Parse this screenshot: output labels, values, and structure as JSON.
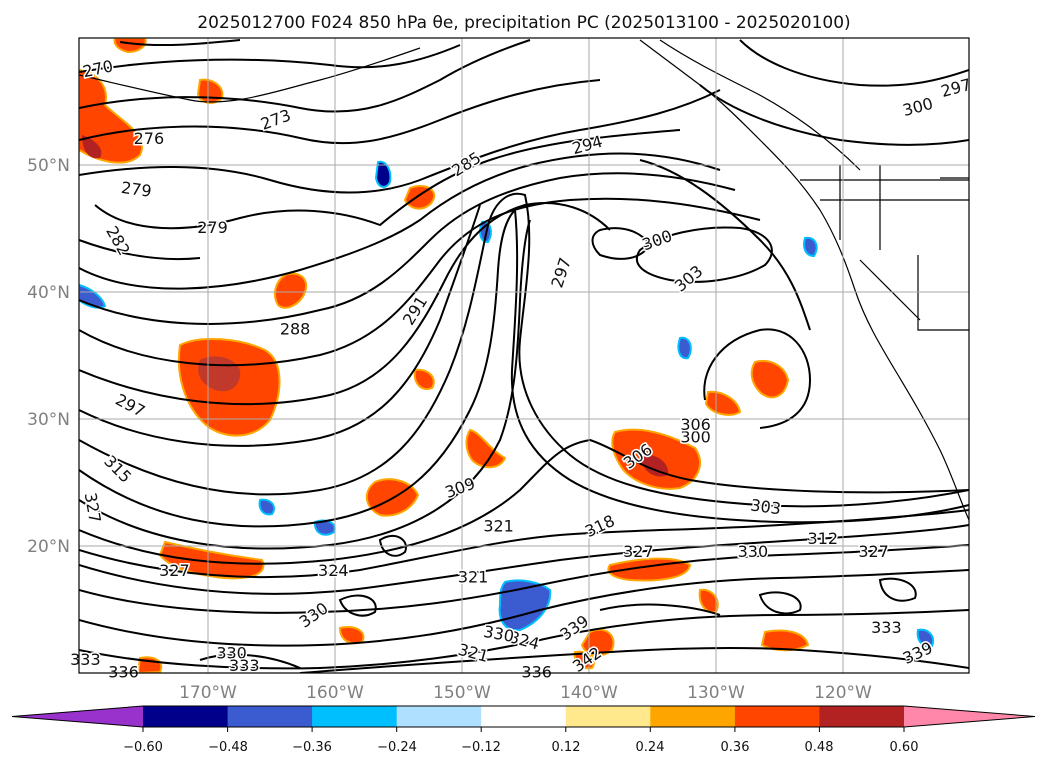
{
  "title": "2025012700 F024 850 hPa θe, precipitation PC (2025013100 - 2025020100)",
  "map": {
    "lat_labels": [
      "50°N",
      "40°N",
      "30°N",
      "20°N"
    ],
    "lon_labels": [
      "170°W",
      "160°W",
      "150°W",
      "140°W",
      "130°W",
      "120°W"
    ],
    "contour_labels": [
      {
        "text": "270",
        "lon": -178.5,
        "lat": 57.5,
        "rot": -12
      },
      {
        "text": "273",
        "lon": -164.5,
        "lat": 53.5,
        "rot": -20
      },
      {
        "text": "276",
        "lon": -174.5,
        "lat": 52.0,
        "rot": 0
      },
      {
        "text": "279",
        "lon": -175.5,
        "lat": 48.0,
        "rot": 8
      },
      {
        "text": "279",
        "lon": -169.5,
        "lat": 45.0,
        "rot": 0
      },
      {
        "text": "282",
        "lon": -177.0,
        "lat": 44.0,
        "rot": 60
      },
      {
        "text": "285",
        "lon": -149.5,
        "lat": 50.0,
        "rot": -32
      },
      {
        "text": "288",
        "lon": -163.0,
        "lat": 37.0,
        "rot": 0
      },
      {
        "text": "291",
        "lon": -153.5,
        "lat": 38.5,
        "rot": -58
      },
      {
        "text": "294",
        "lon": -140.0,
        "lat": 51.5,
        "rot": -15
      },
      {
        "text": "297",
        "lon": -176.0,
        "lat": 31.0,
        "rot": 28
      },
      {
        "text": "297",
        "lon": -142.0,
        "lat": 41.5,
        "rot": -72
      },
      {
        "text": "297",
        "lon": -111.0,
        "lat": 56.0,
        "rot": -15
      },
      {
        "text": "300",
        "lon": -134.5,
        "lat": 44.0,
        "rot": -20
      },
      {
        "text": "300",
        "lon": -131.5,
        "lat": 28.5,
        "rot": 0
      },
      {
        "text": "300",
        "lon": -114.0,
        "lat": 54.5,
        "rot": -15
      },
      {
        "text": "303",
        "lon": -132.0,
        "lat": 41.0,
        "rot": -40
      },
      {
        "text": "303",
        "lon": -126.0,
        "lat": 23.0,
        "rot": 8
      },
      {
        "text": "306",
        "lon": -131.5,
        "lat": 29.5,
        "rot": 0
      },
      {
        "text": "306",
        "lon": -136.0,
        "lat": 27.0,
        "rot": -35
      },
      {
        "text": "309",
        "lon": -150.0,
        "lat": 24.5,
        "rot": -20
      },
      {
        "text": "312",
        "lon": -121.5,
        "lat": 20.5,
        "rot": 0
      },
      {
        "text": "315",
        "lon": -177.0,
        "lat": 26.0,
        "rot": 45
      },
      {
        "text": "318",
        "lon": -139.0,
        "lat": 21.5,
        "rot": -25
      },
      {
        "text": "321",
        "lon": -147.0,
        "lat": 21.5,
        "rot": 0
      },
      {
        "text": "321",
        "lon": -149.0,
        "lat": 17.5,
        "rot": 0
      },
      {
        "text": "321",
        "lon": -149.0,
        "lat": 11.5,
        "rot": 15
      },
      {
        "text": "324",
        "lon": -160.0,
        "lat": 18.0,
        "rot": 0
      },
      {
        "text": "324",
        "lon": -145.0,
        "lat": 12.5,
        "rot": 15
      },
      {
        "text": "327",
        "lon": -179.0,
        "lat": 23.0,
        "rot": 80
      },
      {
        "text": "327",
        "lon": -172.5,
        "lat": 18.0,
        "rot": 0
      },
      {
        "text": "327",
        "lon": -136.0,
        "lat": 19.5,
        "rot": 0
      },
      {
        "text": "327",
        "lon": -117.5,
        "lat": 19.5,
        "rot": 0
      },
      {
        "text": "330",
        "lon": -127.0,
        "lat": 19.5,
        "rot": 0
      },
      {
        "text": "330",
        "lon": -161.5,
        "lat": 14.5,
        "rot": -35
      },
      {
        "text": "330",
        "lon": -147.0,
        "lat": 13.0,
        "rot": 10
      },
      {
        "text": "330",
        "lon": -168.0,
        "lat": 11.5,
        "rot": 0
      },
      {
        "text": "333",
        "lon": -179.5,
        "lat": 11.0,
        "rot": 0
      },
      {
        "text": "333",
        "lon": -167.0,
        "lat": 10.5,
        "rot": 0
      },
      {
        "text": "333",
        "lon": -116.5,
        "lat": 13.5,
        "rot": 0
      },
      {
        "text": "336",
        "lon": -176.5,
        "lat": 10.0,
        "rot": 0
      },
      {
        "text": "336",
        "lon": -144.0,
        "lat": 10.0,
        "rot": 0
      },
      {
        "text": "339",
        "lon": -141.0,
        "lat": 13.5,
        "rot": -35
      },
      {
        "text": "339",
        "lon": -114.0,
        "lat": 11.5,
        "rot": -25
      },
      {
        "text": "342",
        "lon": -140.0,
        "lat": 11.0,
        "rot": -35
      }
    ]
  },
  "colorbar": {
    "colors": [
      "#9932cc",
      "#00008b",
      "#3b5bd1",
      "#00bfff",
      "#b0e0ff",
      "#ffffff",
      "#ffe98c",
      "#ffa500",
      "#ff4500",
      "#b22222",
      "#ff88aa"
    ],
    "tick_labels": [
      "−0.60",
      "−0.48",
      "−0.36",
      "−0.24",
      "−0.12",
      "0.12",
      "0.24",
      "0.36",
      "0.48",
      "0.60"
    ]
  }
}
